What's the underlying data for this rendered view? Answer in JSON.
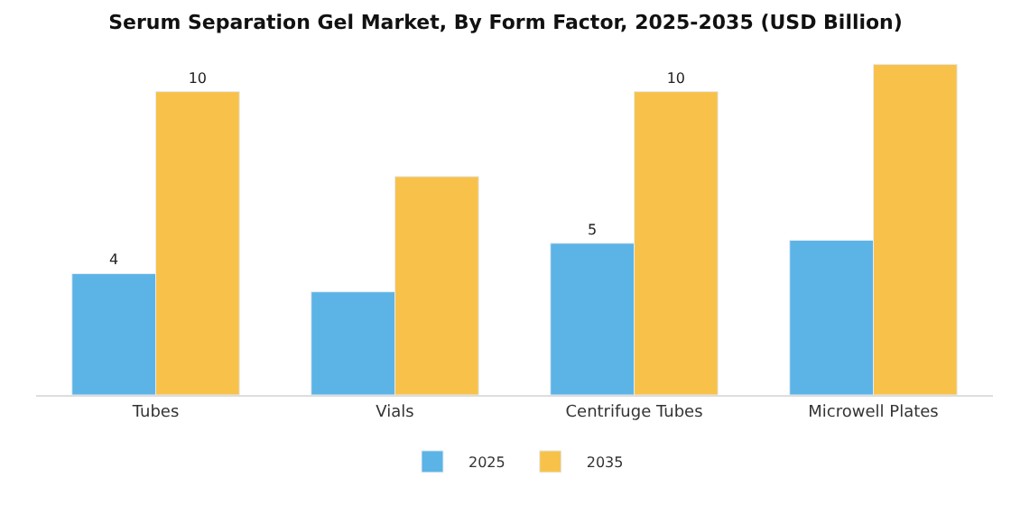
{
  "chart_data": {
    "type": "bar",
    "title": "Serum Separation Gel Market, By Form Factor, 2025-2035 (USD Billion)",
    "categories": [
      "Tubes",
      "Vials",
      "Centrifuge Tubes",
      "Microwell Plates"
    ],
    "series": [
      {
        "name": "2025",
        "color": "#5cb3e6",
        "values": [
          4,
          3.4,
          5,
          5.1
        ],
        "value_labels": [
          "4",
          null,
          "5",
          null
        ]
      },
      {
        "name": "2035",
        "color": "#f8c24a",
        "values": [
          10,
          7.2,
          10,
          10.9
        ],
        "value_labels": [
          "10",
          null,
          "10",
          null
        ]
      }
    ],
    "legend": "bottom"
  }
}
